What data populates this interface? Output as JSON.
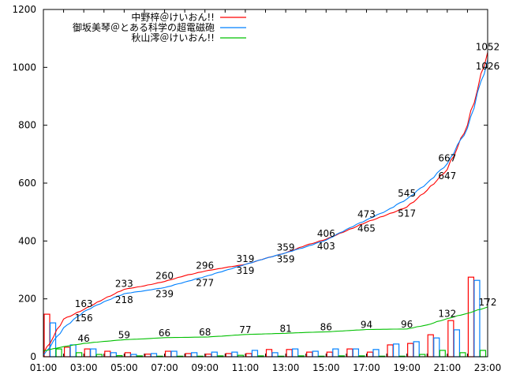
{
  "chart_data": {
    "type": "line",
    "title": "",
    "xlabel": "",
    "ylabel": "",
    "ylim": [
      0,
      1200
    ],
    "yticks": [
      "0",
      "200",
      "400",
      "600",
      "800",
      "1000",
      "1200"
    ],
    "ytick_values": [
      0,
      200,
      400,
      600,
      800,
      1000,
      1200
    ],
    "xlim_hours": [
      1,
      23
    ],
    "xticks": [
      "01:00",
      "03:00",
      "05:00",
      "07:00",
      "09:00",
      "11:00",
      "13:00",
      "15:00",
      "17:00",
      "19:00",
      "21:00",
      "23:00"
    ],
    "xtick_hours": [
      1,
      3,
      5,
      7,
      9,
      11,
      13,
      15,
      17,
      19,
      21,
      23
    ],
    "legend_position": "top-right",
    "hours": [
      1,
      2,
      3,
      4,
      5,
      6,
      7,
      8,
      9,
      10,
      11,
      12,
      13,
      14,
      15,
      16,
      17,
      18,
      19,
      20,
      21,
      22,
      23
    ],
    "series": [
      {
        "name": "中野梓＠けいおん!!",
        "color": "#ff0000",
        "cumulative": [
          10,
          130,
          163,
          200,
          233,
          245,
          260,
          280,
          296,
          308,
          319,
          340,
          359,
          385,
          406,
          435,
          465,
          490,
          517,
          575,
          647,
          800,
          1052
        ],
        "hourly_bars": [
          147,
          33,
          27,
          19,
          14,
          9,
          19,
          11,
          9,
          11,
          11,
          25,
          25,
          16,
          16,
          27,
          16,
          41,
          46,
          76,
          125,
          275
        ],
        "label_hours": [
          3,
          5,
          7,
          9,
          11,
          13,
          15,
          17,
          19,
          21,
          23
        ],
        "labels": [
          "163",
          "233",
          "260",
          "296",
          "319",
          "359",
          "406",
          "465",
          "517",
          "647",
          "1052"
        ]
      },
      {
        "name": "御坂美琴＠とある科学の超電磁砲",
        "color": "#0080ff",
        "cumulative": [
          5,
          100,
          156,
          190,
          218,
          228,
          239,
          258,
          277,
          298,
          319,
          340,
          359,
          380,
          403,
          440,
          473,
          505,
          545,
          600,
          667,
          790,
          1026
        ],
        "hourly_bars": [
          117,
          41,
          27,
          14,
          8,
          11,
          19,
          14,
          16,
          16,
          22,
          14,
          27,
          19,
          27,
          27,
          25,
          44,
          52,
          65,
          93,
          264
        ],
        "label_hours": [
          3,
          5,
          7,
          9,
          11,
          13,
          15,
          17,
          19,
          21,
          23
        ],
        "labels": [
          "156",
          "218",
          "239",
          "277",
          "319",
          "359",
          "403",
          "473",
          "545",
          "667",
          "1026"
        ]
      },
      {
        "name": "秋山澪＠けいおん!!",
        "color": "#00c000",
        "cumulative": [
          20,
          35,
          46,
          53,
          59,
          62,
          66,
          67,
          68,
          72,
          77,
          79,
          81,
          84,
          86,
          90,
          94,
          95,
          96,
          110,
          132,
          150,
          172
        ],
        "hourly_bars": [
          27,
          14,
          8,
          4,
          3,
          2,
          2,
          2,
          3,
          5,
          3,
          2,
          3,
          2,
          3,
          3,
          2,
          2,
          8,
          22,
          14,
          22
        ],
        "label_hours": [
          3,
          5,
          7,
          9,
          11,
          13,
          15,
          17,
          19,
          21,
          23
        ],
        "labels": [
          "46",
          "59",
          "66",
          "68",
          "77",
          "81",
          "86",
          "94",
          "96",
          "132",
          "172"
        ]
      }
    ]
  }
}
